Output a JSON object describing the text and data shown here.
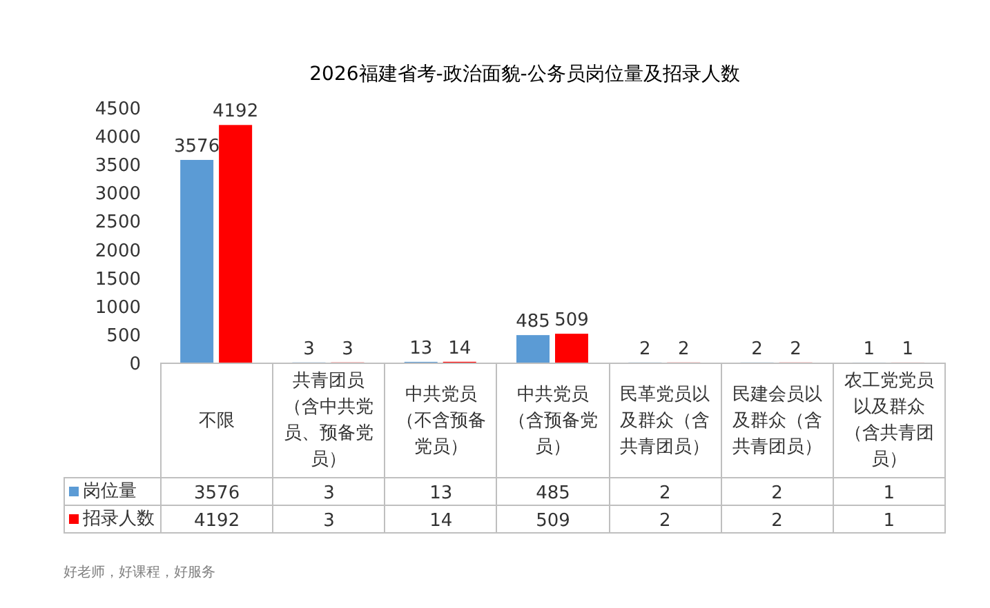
{
  "chart_data": {
    "type": "bar",
    "title": "2026福建省考-政治面貌-公务员岗位量及招录人数",
    "categories": [
      "不限",
      "共青团员（含中共党员、预备党员）",
      "中共党员（不含预备党员）",
      "中共党员（含预备党员）",
      "民革党员以及群众（含共青团员）",
      "民建会员以及群众（含共青团员）",
      "农工党党员以及群众（含共青团员）"
    ],
    "series": [
      {
        "name": "岗位量",
        "color": "#5b9bd5",
        "values": [
          3576,
          3,
          13,
          485,
          2,
          2,
          1
        ],
        "value_labels": [
          "3576",
          "3",
          "13",
          "485",
          "2",
          "2",
          "1"
        ]
      },
      {
        "name": "招录人数",
        "color": "#ff0000",
        "values": [
          4192,
          3,
          14,
          509,
          2,
          2,
          1
        ],
        "value_labels": [
          "4192",
          "3",
          "14",
          "509",
          "2",
          "2",
          "1"
        ]
      }
    ],
    "ylim": [
      0,
      4500
    ],
    "yticks": [
      0,
      500,
      1000,
      1500,
      2000,
      2500,
      3000,
      3500,
      4000,
      4500
    ],
    "legend": "bottom left",
    "annotations": [
      {
        "text": "3576",
        "x": "不限",
        "y": 3576
      },
      {
        "text": "3",
        "x": "共青团员（含中共党员、预备党员）",
        "y": 3
      },
      {
        "text": "13",
        "x": "中共党员（不含预备党员）",
        "y": 13
      },
      {
        "text": "485",
        "x": "中共党员（含预备党员）",
        "y": 485
      },
      {
        "text": "2",
        "x": "民革党员以及群众（含共青团员）",
        "y": 2
      },
      {
        "text": "2",
        "x": "民建会员以及群众（含共青团员）",
        "y": 2
      },
      {
        "text": "1",
        "x": "农工党党员以及群众（含共青团员）",
        "y": 1
      },
      {
        "text": "4192",
        "x": "不限",
        "y": 4192
      },
      {
        "text": "3",
        "x": "共青团员（含中共党员、预备党员）",
        "y": 3
      },
      {
        "text": "14",
        "x": "中共党员（不含预备党员）",
        "y": 14
      },
      {
        "text": "509",
        "x": "中共党员（含预备党员）",
        "y": 509
      },
      {
        "text": "2",
        "x": "民革党员以及群众（含共青团员）",
        "y": 2
      },
      {
        "text": "2",
        "x": "民建会员以及群众（含共青团员）",
        "y": 2
      },
      {
        "text": "1",
        "x": "农工党党员以及群众（含共青团员）",
        "y": 1
      },
      "好老师，好课程，好服务"
    ]
  }
}
